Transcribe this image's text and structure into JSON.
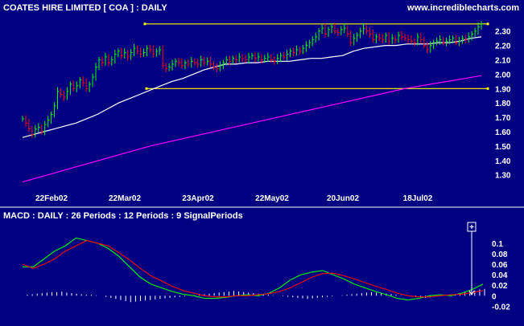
{
  "header": {
    "title": "COATES HIRE LIMITED  [ COA ] : DAILY",
    "site": "www.incrediblecharts.com"
  },
  "colors": {
    "background": "#000080",
    "text": "#ffffff",
    "price_bar_up": "#00ff00",
    "price_bar_down": "#ff0000",
    "moving_average_short": "#ffffff",
    "moving_average_long": "#ff00ff",
    "resistance_line": "#ffff00",
    "macd_line": "#00ff00",
    "signal_line": "#ff0000",
    "histogram": "#ffffff"
  },
  "chart_data": [
    {
      "type": "ohlc",
      "title": "COATES HIRE LIMITED  [ COA ] : DAILY",
      "x_tick_labels": [
        "22Feb02",
        "22Mar02",
        "23Apr02",
        "22May02",
        "20Jun02",
        "18Jul02"
      ],
      "y_tick_labels": [
        "2.30",
        "2.20",
        "2.10",
        "2.00",
        "1.90",
        "1.80",
        "1.70",
        "1.60",
        "1.50",
        "1.40",
        "1.30"
      ],
      "ylim": [
        1.22,
        2.36
      ],
      "grid": false,
      "close": [
        1.69,
        1.66,
        1.62,
        1.58,
        1.62,
        1.63,
        1.6,
        1.65,
        1.68,
        1.72,
        1.78,
        1.88,
        1.86,
        1.84,
        1.88,
        1.93,
        1.9,
        1.92,
        1.96,
        1.94,
        1.9,
        1.93,
        1.98,
        2.05,
        2.1,
        2.08,
        2.12,
        2.08,
        2.1,
        2.14,
        2.16,
        2.13,
        2.15,
        2.12,
        2.15,
        2.18,
        2.16,
        2.14,
        2.15,
        2.18,
        2.17,
        2.14,
        2.16,
        2.17,
        2.06,
        2.04,
        2.05,
        2.07,
        2.09,
        2.08,
        2.06,
        2.08,
        2.07,
        2.09,
        2.08,
        2.07,
        2.1,
        2.08,
        2.09,
        2.07,
        2.05,
        2.04,
        2.06,
        2.08,
        2.1,
        2.09,
        2.11,
        2.1,
        2.12,
        2.11,
        2.1,
        2.12,
        2.13,
        2.11,
        2.12,
        2.1,
        2.11,
        2.12,
        2.1,
        2.09,
        2.11,
        2.13,
        2.12,
        2.14,
        2.16,
        2.15,
        2.17,
        2.16,
        2.18,
        2.2,
        2.22,
        2.24,
        2.26,
        2.3,
        2.32,
        2.28,
        2.31,
        2.33,
        2.3,
        2.29,
        2.31,
        2.32,
        2.28,
        2.22,
        2.25,
        2.27,
        2.3,
        2.32,
        2.3,
        2.28,
        2.24,
        2.26,
        2.25,
        2.24,
        2.27,
        2.23,
        2.25,
        2.24,
        2.27,
        2.26,
        2.25,
        2.24,
        2.23,
        2.22,
        2.26,
        2.24,
        2.2,
        2.17,
        2.2,
        2.22,
        2.23,
        2.24,
        2.22,
        2.23,
        2.24,
        2.25,
        2.22,
        2.23,
        2.25,
        2.24,
        2.26,
        2.28,
        2.3,
        2.33,
        2.35
      ],
      "short_moving_average": [
        1.56,
        1.58,
        1.6,
        1.62,
        1.64,
        1.66,
        1.69,
        1.72,
        1.76,
        1.8,
        1.83,
        1.86,
        1.89,
        1.92,
        1.95,
        1.97,
        2.0,
        2.03,
        2.05,
        2.07,
        2.07,
        2.08,
        2.08,
        2.09,
        2.09,
        2.09,
        2.1,
        2.11,
        2.11,
        2.12,
        2.13,
        2.16,
        2.18,
        2.19,
        2.2,
        2.2,
        2.21,
        2.21,
        2.21,
        2.22,
        2.22,
        2.23,
        2.25,
        2.26
      ],
      "long_moving_average": [
        1.25,
        1.3,
        1.35,
        1.4,
        1.45,
        1.5,
        1.54,
        1.58,
        1.62,
        1.66,
        1.7,
        1.74,
        1.78,
        1.82,
        1.86,
        1.9,
        1.93,
        1.96,
        1.99
      ],
      "horizontal_lines": [
        2.35,
        1.9
      ]
    },
    {
      "type": "line",
      "title": "MACD : DAILY : 26 Periods : 12 Periods : 9 SignalPeriods",
      "y_tick_labels": [
        "0.1",
        "0.08",
        "0.06",
        "0.04",
        "0.02",
        "0",
        "-0.02"
      ],
      "ylim": [
        -0.03,
        0.115
      ],
      "grid": false,
      "annotation": "+",
      "series": [
        {
          "values": [
            0.055,
            0.055,
            0.07,
            0.085,
            0.095,
            0.11,
            0.105,
            0.1,
            0.09,
            0.075,
            0.055,
            0.035,
            0.022,
            0.015,
            0.008,
            0.003,
            0.0,
            -0.005,
            -0.005,
            -0.003,
            0.0,
            0.002,
            0.0,
            0.005,
            0.015,
            0.03,
            0.04,
            0.045,
            0.048,
            0.04,
            0.032,
            0.022,
            0.015,
            0.008,
            0.002,
            -0.005,
            -0.008,
            -0.005,
            0.0,
            0.002,
            0.0,
            0.005,
            0.012,
            0.022
          ]
        },
        {
          "values": [
            0.06,
            0.052,
            0.06,
            0.07,
            0.085,
            0.095,
            0.105,
            0.1,
            0.095,
            0.082,
            0.068,
            0.052,
            0.038,
            0.028,
            0.018,
            0.01,
            0.005,
            0.0,
            -0.002,
            -0.002,
            0.0,
            0.0,
            0.002,
            0.004,
            0.008,
            0.015,
            0.025,
            0.035,
            0.042,
            0.043,
            0.038,
            0.032,
            0.025,
            0.018,
            0.012,
            0.005,
            0.0,
            -0.002,
            -0.002,
            0.0,
            0.002,
            0.003,
            0.006,
            0.01
          ]
        }
      ],
      "histogram": [
        0.002,
        0.003,
        0.004,
        0.005,
        0.006,
        0.007,
        0.007,
        0.008,
        0.006,
        0.005,
        0.004,
        0.003,
        0.002,
        0.002,
        0.001,
        0.0,
        -0.002,
        -0.004,
        -0.006,
        -0.008,
        -0.01,
        -0.012,
        -0.011,
        -0.01,
        -0.009,
        -0.008,
        -0.007,
        -0.006,
        -0.005,
        -0.004,
        -0.003,
        -0.002,
        -0.001,
        0.0,
        0.001,
        0.002,
        0.003,
        0.004,
        0.005,
        0.006,
        0.007,
        0.008,
        0.009,
        0.008,
        0.007,
        0.006,
        0.005,
        0.004,
        0.003,
        0.002,
        0.001,
        0.0,
        -0.001,
        -0.002,
        -0.003,
        -0.004,
        -0.005,
        -0.006,
        -0.005,
        -0.004,
        -0.003,
        -0.002,
        -0.001,
        0.0,
        0.001,
        0.002,
        0.003,
        0.004,
        0.005,
        0.006,
        0.007,
        0.006,
        0.005,
        0.004,
        0.003,
        0.002,
        0.001,
        0.0,
        -0.001,
        -0.002,
        -0.003,
        -0.004,
        -0.003,
        -0.002,
        -0.001,
        0.0,
        0.001,
        0.002,
        0.004,
        0.006,
        0.008,
        0.01,
        0.012,
        0.013
      ]
    }
  ]
}
